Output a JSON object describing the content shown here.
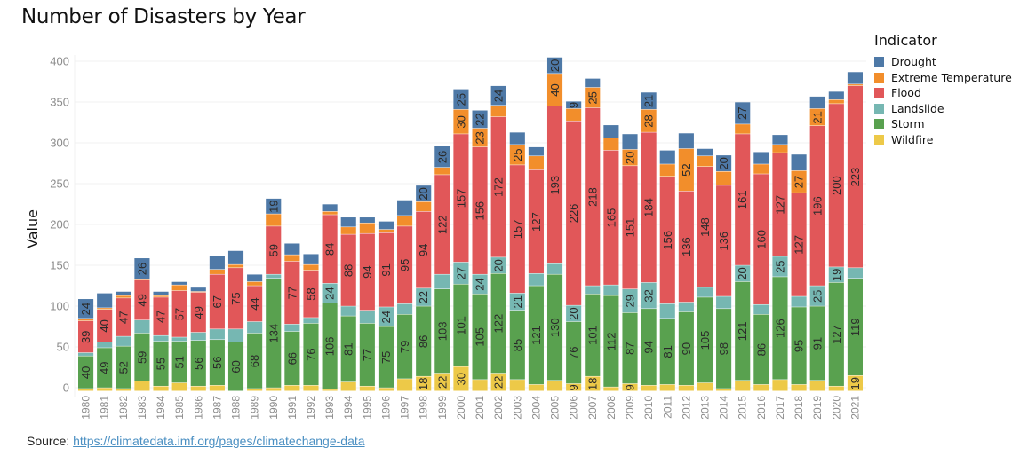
{
  "chart_data": {
    "type": "bar",
    "stacked": true,
    "title": "Number of Disasters by Year",
    "xlabel": "",
    "ylabel": "Value",
    "ylim": [
      -7,
      420
    ],
    "yticks": [
      0,
      50,
      100,
      150,
      200,
      250,
      300,
      350,
      400
    ],
    "grid": true,
    "legend_title": "Indicator",
    "legend_position": "right",
    "categories": [
      "1980",
      "1981",
      "1982",
      "1983",
      "1984",
      "1985",
      "1986",
      "1987",
      "1988",
      "1989",
      "1990",
      "1991",
      "1992",
      "1993",
      "1994",
      "1995",
      "1996",
      "1997",
      "1998",
      "1999",
      "2000",
      "2001",
      "2002",
      "2003",
      "2004",
      "2005",
      "2006",
      "2007",
      "2008",
      "2009",
      "2010",
      "2011",
      "2012",
      "2013",
      "2014",
      "2015",
      "2016",
      "2017",
      "2018",
      "2019",
      "2020",
      "2021"
    ],
    "series": [
      {
        "name": "Wildfire",
        "color": "#edc948",
        "values": [
          3,
          4,
          3,
          12,
          6,
          10,
          6,
          7,
          0,
          3,
          4,
          7,
          7,
          2,
          11,
          6,
          4,
          15,
          18,
          22,
          30,
          14,
          22,
          14,
          8,
          13,
          9,
          18,
          5,
          9,
          7,
          8,
          7,
          10,
          3,
          13,
          8,
          14,
          8,
          13,
          6,
          19
        ],
        "labeled": [
          0,
          0,
          0,
          0,
          0,
          0,
          0,
          0,
          0,
          0,
          0,
          0,
          0,
          0,
          0,
          0,
          0,
          0,
          1,
          1,
          1,
          0,
          1,
          0,
          0,
          0,
          1,
          1,
          0,
          1,
          0,
          0,
          0,
          0,
          0,
          0,
          0,
          0,
          0,
          0,
          0,
          1
        ]
      },
      {
        "name": "Storm",
        "color": "#59a14f",
        "values": [
          40,
          49,
          52,
          59,
          55,
          51,
          56,
          56,
          60,
          68,
          134,
          66,
          76,
          106,
          81,
          77,
          75,
          79,
          86,
          103,
          101,
          105,
          122,
          85,
          121,
          130,
          76,
          101,
          112,
          87,
          94,
          81,
          90,
          105,
          98,
          121,
          86,
          126,
          95,
          91,
          127,
          119
        ],
        "labeled": [
          1,
          1,
          1,
          1,
          1,
          1,
          1,
          1,
          1,
          1,
          1,
          1,
          1,
          1,
          1,
          1,
          1,
          1,
          1,
          1,
          1,
          1,
          1,
          1,
          1,
          1,
          1,
          1,
          1,
          1,
          1,
          1,
          1,
          1,
          1,
          1,
          1,
          1,
          1,
          1,
          1,
          1
        ]
      },
      {
        "name": "Landslide",
        "color": "#76b7b2",
        "values": [
          4,
          7,
          12,
          16,
          7,
          5,
          10,
          13,
          16,
          14,
          5,
          9,
          7,
          24,
          12,
          16,
          24,
          13,
          22,
          18,
          27,
          24,
          20,
          21,
          15,
          13,
          20,
          10,
          13,
          29,
          32,
          18,
          12,
          12,
          15,
          20,
          12,
          25,
          13,
          25,
          19,
          13
        ],
        "labeled": [
          0,
          0,
          0,
          0,
          0,
          0,
          0,
          0,
          0,
          0,
          0,
          0,
          0,
          1,
          0,
          0,
          1,
          0,
          1,
          0,
          1,
          1,
          1,
          1,
          0,
          0,
          1,
          0,
          0,
          1,
          1,
          0,
          0,
          0,
          0,
          1,
          0,
          1,
          0,
          1,
          1,
          0
        ]
      },
      {
        "name": "Flood",
        "color": "#e15759",
        "values": [
          39,
          40,
          47,
          49,
          47,
          57,
          49,
          67,
          75,
          44,
          59,
          77,
          58,
          84,
          88,
          94,
          91,
          95,
          94,
          122,
          157,
          156,
          172,
          157,
          127,
          193,
          226,
          218,
          165,
          151,
          184,
          156,
          136,
          148,
          136,
          161,
          160,
          127,
          127,
          196,
          200,
          223
        ],
        "labeled": [
          1,
          1,
          1,
          1,
          1,
          1,
          1,
          1,
          1,
          1,
          1,
          1,
          1,
          1,
          1,
          1,
          1,
          1,
          1,
          1,
          1,
          1,
          1,
          1,
          1,
          1,
          1,
          1,
          1,
          1,
          1,
          1,
          1,
          1,
          1,
          1,
          1,
          1,
          1,
          1,
          1,
          1
        ]
      },
      {
        "name": "Extreme Temperature",
        "color": "#f28e2b",
        "values": [
          3,
          2,
          3,
          1,
          2,
          7,
          1,
          6,
          4,
          5,
          15,
          8,
          7,
          4,
          9,
          13,
          4,
          13,
          12,
          9,
          30,
          23,
          14,
          25,
          17,
          40,
          15,
          25,
          15,
          20,
          28,
          15,
          52,
          13,
          17,
          12,
          12,
          10,
          27,
          21,
          5,
          2
        ],
        "labeled": [
          0,
          0,
          0,
          0,
          0,
          0,
          0,
          0,
          0,
          0,
          0,
          0,
          0,
          0,
          0,
          0,
          0,
          0,
          0,
          0,
          1,
          1,
          0,
          1,
          0,
          1,
          0,
          1,
          0,
          1,
          1,
          0,
          1,
          0,
          0,
          0,
          0,
          0,
          1,
          1,
          0,
          0
        ]
      },
      {
        "name": "Drought",
        "color": "#4e79a7",
        "values": [
          24,
          18,
          5,
          26,
          5,
          4,
          5,
          17,
          17,
          9,
          19,
          14,
          13,
          9,
          12,
          7,
          10,
          19,
          20,
          26,
          25,
          22,
          24,
          15,
          11,
          20,
          9,
          11,
          16,
          19,
          21,
          17,
          19,
          9,
          20,
          27,
          15,
          12,
          20,
          15,
          10,
          15
        ],
        "labeled": [
          1,
          0,
          0,
          1,
          0,
          0,
          0,
          0,
          0,
          0,
          1,
          0,
          0,
          0,
          0,
          0,
          0,
          0,
          1,
          1,
          1,
          1,
          1,
          0,
          0,
          1,
          1,
          0,
          0,
          0,
          1,
          0,
          0,
          0,
          1,
          1,
          0,
          0,
          0,
          0,
          0,
          0
        ]
      }
    ],
    "legend_order": [
      "Drought",
      "Extreme Temperature",
      "Flood",
      "Landslide",
      "Storm",
      "Wildfire"
    ]
  },
  "source": {
    "label": "Source:",
    "link_text": "https://climatedata.imf.org/pages/climatechange-data"
  }
}
